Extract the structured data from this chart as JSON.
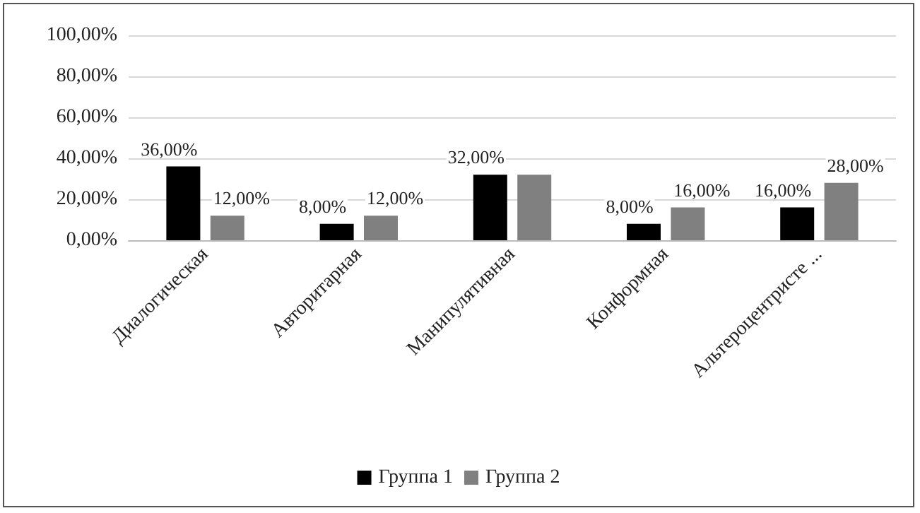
{
  "chart_data": {
    "type": "bar",
    "categories": [
      "Диалогическая",
      "Авторитарная",
      "Манипулятивная",
      "Конформная",
      "Альтероцентристе ..."
    ],
    "series": [
      {
        "name": "Группа 1",
        "color": "#000000",
        "values": [
          36,
          8,
          32,
          8,
          16
        ],
        "value_labels": [
          "36,00%",
          "8,00%",
          "32,00%",
          "8,00%",
          "16,00%"
        ]
      },
      {
        "name": "Группа 2",
        "color": "#808080",
        "values": [
          12,
          12,
          32,
          16,
          28
        ],
        "value_labels": [
          "12,00%",
          "12,00%",
          null,
          "16,00%",
          "28,00%"
        ]
      }
    ],
    "ylim": [
      0,
      100
    ],
    "yticks": [
      {
        "value": 0,
        "label": "0,00%"
      },
      {
        "value": 20,
        "label": "20,00%"
      },
      {
        "value": 40,
        "label": "40,00%"
      },
      {
        "value": 60,
        "label": "60,00%"
      },
      {
        "value": 80,
        "label": "80,00%"
      },
      {
        "value": 100,
        "label": "100,00%"
      }
    ],
    "grid": "y",
    "legend": "bottom"
  }
}
